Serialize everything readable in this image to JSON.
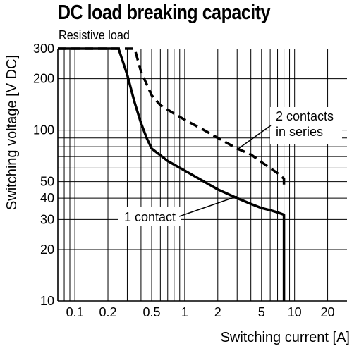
{
  "chart_data": {
    "type": "line",
    "title": "DC load breaking capacity",
    "subtitle": "Resistive load",
    "xlabel": "Switching current [A]",
    "ylabel": "Switching voltage [V DC]",
    "xscale": "log",
    "yscale": "log",
    "xlim": [
      0.07,
      30
    ],
    "ylim": [
      10,
      300
    ],
    "grid": true,
    "x_ticks": [
      0.1,
      0.2,
      0.5,
      1,
      2,
      5,
      10,
      20
    ],
    "x_tick_labels": [
      "0.1",
      "0.2",
      "0.5",
      "1",
      "2",
      "5",
      "10",
      "20"
    ],
    "y_ticks": [
      10,
      20,
      30,
      40,
      50,
      100,
      200,
      300
    ],
    "y_tick_labels": [
      "10",
      "20",
      "30",
      "40",
      "50",
      "100",
      "200",
      "300"
    ],
    "series": [
      {
        "name": "1 contact",
        "style": "solid",
        "x": [
          0.07,
          0.25,
          0.3,
          0.35,
          0.4,
          0.45,
          0.5,
          0.7,
          1,
          1.5,
          2,
          3,
          4,
          5,
          6,
          7,
          8,
          8,
          8
        ],
        "y": [
          300,
          300,
          210,
          145,
          110,
          90,
          78,
          66,
          58,
          50,
          45,
          40,
          37,
          35,
          34,
          33,
          32,
          20,
          10
        ]
      },
      {
        "name": "2 contacts in series",
        "style": "dashed",
        "x": [
          0.07,
          0.35,
          0.4,
          0.5,
          0.6,
          0.8,
          1,
          1.5,
          2,
          3,
          4,
          5,
          6,
          7,
          8,
          8
        ],
        "y": [
          300,
          300,
          220,
          160,
          140,
          125,
          115,
          100,
          90,
          78,
          72,
          65,
          60,
          56,
          52,
          45
        ]
      }
    ],
    "annotations": [
      {
        "text_lines": [
          "2 contacts",
          "in series"
        ],
        "points_to": {
          "x": 3.0,
          "y": 77
        }
      },
      {
        "text_lines": [
          "1 contact"
        ],
        "points_to": {
          "x": 3.0,
          "y": 41
        }
      }
    ]
  }
}
